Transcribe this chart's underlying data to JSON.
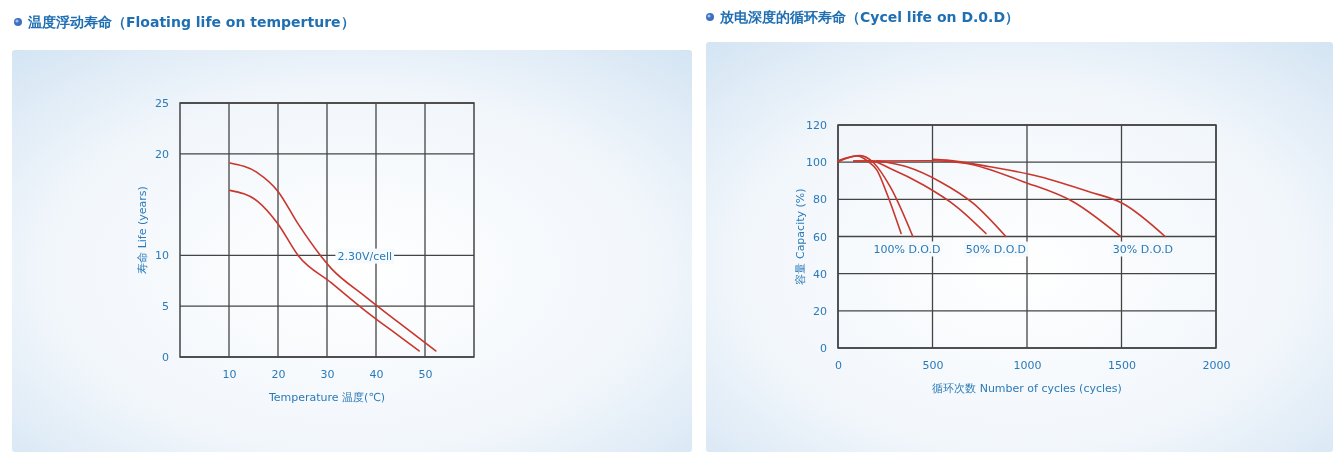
{
  "chart_data": [
    {
      "type": "line",
      "title": "温度浮动寿命（Floating life on temperture）",
      "xlabel": "Temperature  温度(℃)",
      "ylabel": "寿命 Life (years)",
      "xlim": [
        0,
        60
      ],
      "xticks": [
        10,
        20,
        30,
        40,
        50
      ],
      "ylim": [
        0,
        25
      ],
      "yticks": [
        0,
        5,
        10,
        20,
        25
      ],
      "grid": true,
      "series": [
        {
          "color": "#c8372d",
          "x": [
            10.2,
            15.9,
            20.0,
            24.1,
            30.9,
            37.7,
            44.6,
            52.2
          ],
          "values": [
            19.1,
            18.1,
            16.3,
            13.1,
            8.7,
            6.0,
            3.4,
            0.6
          ]
        },
        {
          "color": "#c8372d",
          "x": [
            10.2,
            15.9,
            20.0,
            24.1,
            30.9,
            37.7,
            44.6,
            48.8
          ],
          "values": [
            16.4,
            15.3,
            13.1,
            10,
            7.3,
            4.6,
            2.1,
            0.6
          ]
        }
      ],
      "annotations": [
        "2.30V/cell"
      ]
    },
    {
      "type": "line",
      "title": "放电深度的循环寿命（Cycel life on D.0.D）",
      "xlabel": "循环次数  Number of cycles (cycles)",
      "ylabel": "容量 Capacity (%)",
      "xlim": [
        0,
        2000
      ],
      "xticks": [
        0,
        500,
        1000,
        1500,
        2000
      ],
      "ylim": [
        0,
        120
      ],
      "yticks": [
        0,
        20,
        40,
        60,
        80,
        100,
        120
      ],
      "grid": true,
      "series": [
        {
          "color": "#c8372d",
          "x": [
            0,
            100,
            162,
            206,
            259,
            334
          ],
          "values": [
            100.2,
            103.3,
            100.2,
            95.7,
            83,
            61.6
          ]
        },
        {
          "color": "#c8372d",
          "x": [
            0,
            118,
            188,
            276,
            396
          ],
          "values": [
            100.8,
            103.5,
            99.7,
            86.8,
            60
          ]
        },
        {
          "color": "#c8372d",
          "x": [
            83,
            171,
            276,
            452,
            628,
            783
          ],
          "values": [
            100.6,
            100.8,
            96.6,
            87.7,
            76,
            61.6
          ]
        },
        {
          "color": "#c8372d",
          "x": [
            206,
            364,
            540,
            716,
            888
          ],
          "values": [
            100.8,
            97.5,
            89.5,
            77.8,
            60
          ]
        },
        {
          "color": "#c8372d",
          "x": [
            83,
            505,
            681,
            980,
            1244,
            1495
          ],
          "values": [
            100.6,
            100.8,
            99.3,
            89.5,
            78.7,
            60
          ]
        },
        {
          "color": "#c8372d",
          "x": [
            505,
            575,
            804,
            1068,
            1332,
            1507,
            1731
          ],
          "values": [
            101.5,
            101.1,
            97.5,
            92.2,
            84,
            77.8,
            60
          ]
        }
      ],
      "annotations": [
        "100% D.O.D",
        "50% D.O.D",
        "30% D.O.D"
      ]
    }
  ]
}
